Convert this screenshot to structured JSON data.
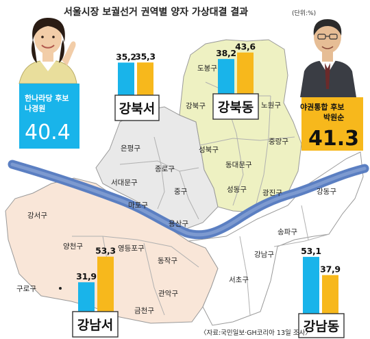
{
  "title": "서울시장 보궐선거 권역별 양자 가상대결 결과",
  "unit": "(단위:%)",
  "source": "〈자료:국민일보·GH코리아 13일 조사〉",
  "colors": {
    "na": "#19b4ea",
    "park": "#f7b81c",
    "gangbukdong_fill": "#eef1c2",
    "gangbukseo_fill": "#e9e9e9",
    "gangnamseo_fill": "#f9e6d8",
    "gangnamdong_fill": "#ffffff",
    "river": "#5b7fc2"
  },
  "candidates": {
    "na": {
      "party": "한나라당 후보",
      "name": "나경원",
      "total": "40.4"
    },
    "park": {
      "party": "야권통합 후보",
      "name": "박원순",
      "total": "41.3"
    }
  },
  "districts": {
    "dobong": "도봉구",
    "gangbuk": "강북구",
    "nowon": "노원구",
    "jungnang": "중랑구",
    "seongbuk": "성북구",
    "dongdaemun": "동대문구",
    "seongdong": "성동구",
    "gwangjin": "광진구",
    "eunpyeong": "은평구",
    "jongno": "종로구",
    "seodaemun": "서대문구",
    "junggu": "중구",
    "mapo": "마포구",
    "yongsan": "용산구",
    "gangseo": "강서구",
    "yangcheon": "양천구",
    "yeongdeungpo": "영등포구",
    "dongjak": "동작구",
    "guro": "구로구",
    "gwanak": "관악구",
    "geumcheon": "금천구",
    "gangdong": "강동구",
    "songpa": "송파구",
    "gangnam": "강남구",
    "seocho": "서초구"
  },
  "chart_data": {
    "type": "bar",
    "title": "서울시장 보궐선거 권역별 양자 가상대결 결과",
    "unit": "%",
    "categories": [
      "강북서",
      "강북동",
      "강남서",
      "강남동"
    ],
    "series": [
      {
        "name": "나경원",
        "values": [
          35.2,
          38.2,
          31.9,
          53.1
        ]
      },
      {
        "name": "박원순",
        "values": [
          35.3,
          43.6,
          53.3,
          37.9
        ]
      }
    ],
    "value_labels": {
      "na": [
        "35,2",
        "38,2",
        "31,9",
        "53,1"
      ],
      "park": [
        "35,3",
        "43,6",
        "53,3",
        "37,9"
      ]
    },
    "overall": {
      "나경원": 40.4,
      "박원순": 41.3
    }
  }
}
